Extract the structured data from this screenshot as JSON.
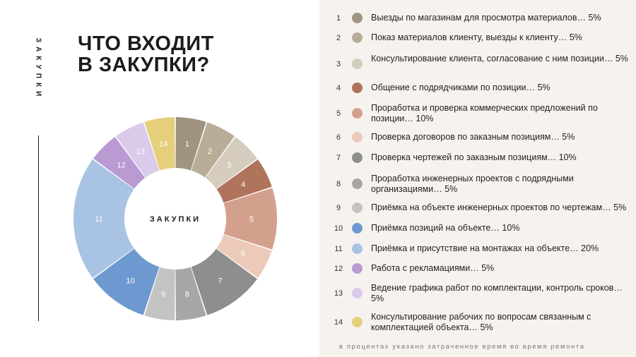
{
  "side_label": "ЗАКУПКИ",
  "title_lines": [
    "ЧТО ВХОДИТ",
    "В ЗАКУПКИ?"
  ],
  "center_label": "ЗАКУПКИ",
  "footnote": "в процентах указано затраченное время во время ремонта",
  "colors": {
    "1": "#a09381",
    "2": "#b9ad98",
    "3": "#d6ccbd",
    "4": "#b0735c",
    "5": "#d4a08e",
    "6": "#eccab9",
    "7": "#8e8e8e",
    "8": "#a7a7a7",
    "9": "#c3c3c3",
    "10": "#6d99d0",
    "11": "#a8c3e3",
    "12": "#b99ad3",
    "13": "#dacbea",
    "14": "#e5cf7a"
  },
  "chart_data": {
    "type": "pie",
    "style": "donut",
    "categories": [
      "1",
      "2",
      "3",
      "4",
      "5",
      "6",
      "7",
      "8",
      "9",
      "10",
      "11",
      "12",
      "13",
      "14"
    ],
    "values": [
      5,
      5,
      5,
      5,
      10,
      5,
      10,
      5,
      5,
      10,
      20,
      5,
      5,
      5
    ],
    "legend": [
      {
        "num": "1",
        "text": "Выезды по магазинам для просмотра материалов… 5%"
      },
      {
        "num": "2",
        "text": "Показ материалов клиенту, выезды к клиенту… 5%"
      },
      {
        "num": "3",
        "text": "Консультирование клиента, согласование с ним позиции… 5%"
      },
      {
        "num": "4",
        "text": "Общение с подрядчиками по позиции… 5%"
      },
      {
        "num": "5",
        "text": "Проработка и проверка коммерческих предложений по позиции… 10%"
      },
      {
        "num": "6",
        "text": "Проверка договоров по заказным позициям… 5%"
      },
      {
        "num": "7",
        "text": "Проверка чертежей по заказным позициям… 10%"
      },
      {
        "num": "8",
        "text": "Проработка инженерных проектов с подрядными организациями… 5%"
      },
      {
        "num": "9",
        "text": "Приёмка на объекте инженерных проектов по чертежам… 5%"
      },
      {
        "num": "10",
        "text": "Приёмка позиций на объекте… 10%"
      },
      {
        "num": "11",
        "text": "Приёмка и присутствие на монтажах на объекте… 20%"
      },
      {
        "num": "12",
        "text": "Работа с рекламациями… 5%"
      },
      {
        "num": "13",
        "text": "Ведение графика работ по комплектации, контроль сроков… 5%"
      },
      {
        "num": "14",
        "text": "Консультирование рабочих по вопросам связанным с комплектацией объекта… 5%"
      }
    ]
  }
}
